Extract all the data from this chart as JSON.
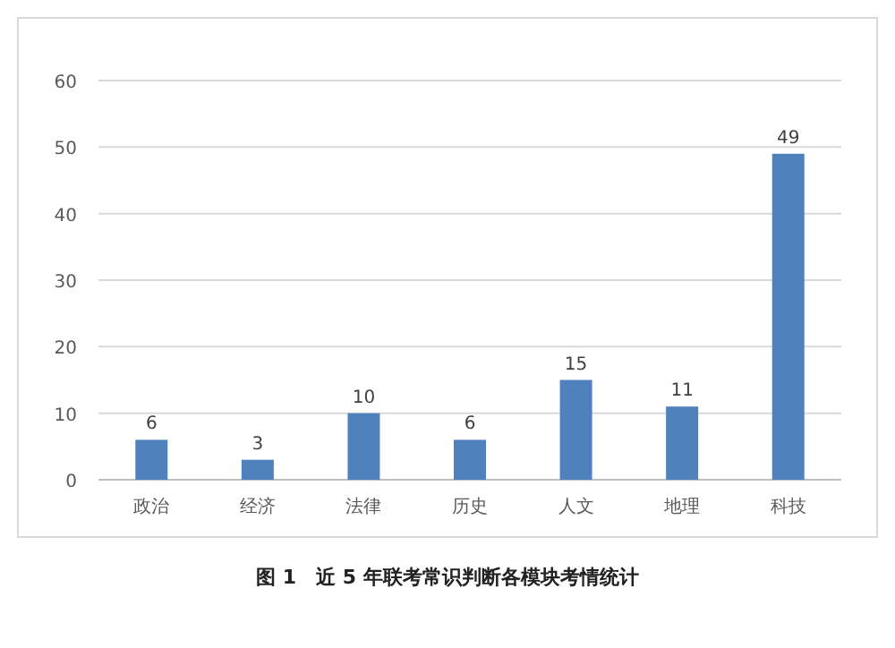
{
  "chart_data": {
    "type": "bar",
    "categories": [
      "政治",
      "经济",
      "法律",
      "历史",
      "人文",
      "地理",
      "科技"
    ],
    "values": [
      6,
      3,
      10,
      6,
      15,
      11,
      49
    ],
    "color": "#4f81bd",
    "ylim": [
      0,
      60
    ],
    "yticks": [
      0,
      10,
      20,
      30,
      40,
      50,
      60
    ],
    "grid": "y",
    "data_labels": true,
    "annotations": [
      "图 1　近 5 年联考常识判断各模块考情统计"
    ]
  }
}
